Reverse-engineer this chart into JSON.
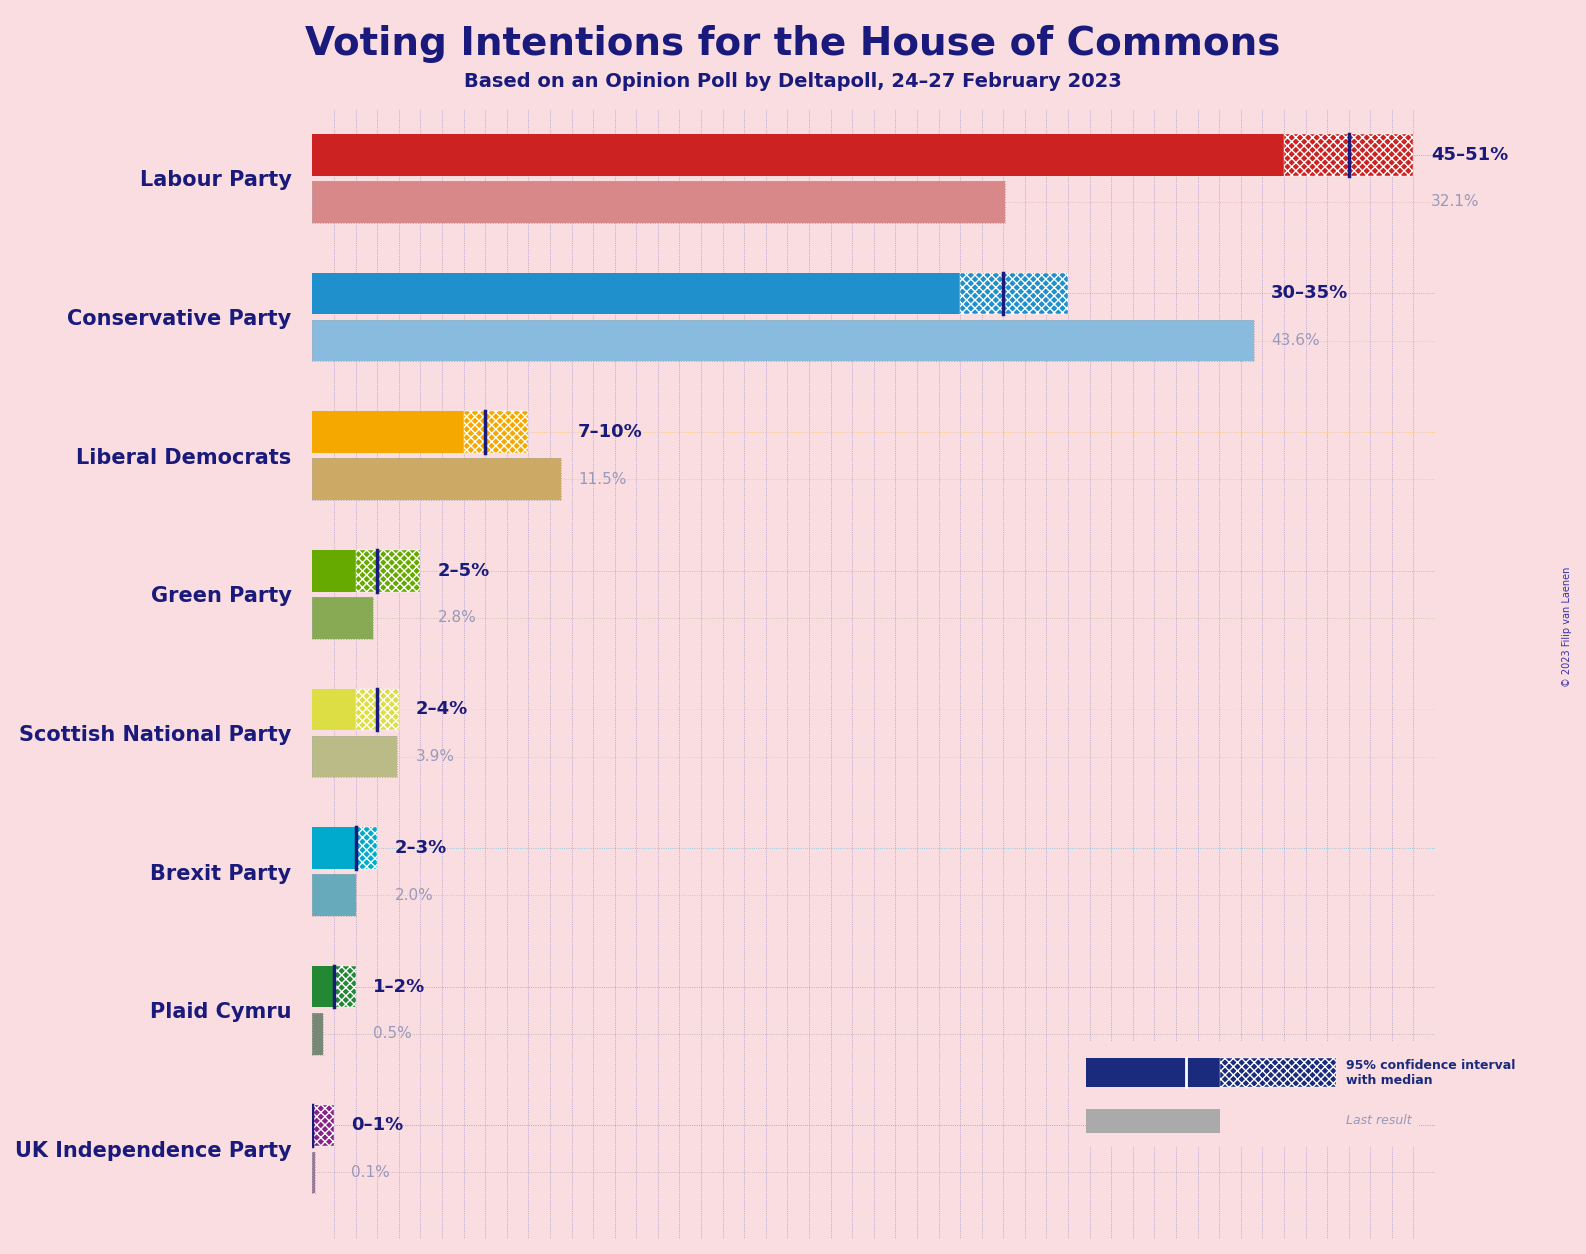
{
  "title": "Voting Intentions for the House of Commons",
  "subtitle": "Based on an Opinion Poll by Deltapoll, 24–27 February 2023",
  "copyright": "© 2023 Filip van Laenen",
  "background_color": "#f9dde0",
  "title_color": "#1a1a7c",
  "parties": [
    {
      "name": "Labour Party",
      "ci_low": 45,
      "ci_high": 51,
      "median": 48,
      "last_result": 32.1,
      "bar_color": "#cc2222",
      "last_color": "#d88888",
      "label": "45–51%",
      "last_label": "32.1%"
    },
    {
      "name": "Conservative Party",
      "ci_low": 30,
      "ci_high": 35,
      "median": 32,
      "last_result": 43.6,
      "bar_color": "#2090cc",
      "last_color": "#88bbdd",
      "label": "30–35%",
      "last_label": "43.6%"
    },
    {
      "name": "Liberal Democrats",
      "ci_low": 7,
      "ci_high": 10,
      "median": 8,
      "last_result": 11.5,
      "bar_color": "#f5a800",
      "last_color": "#ccaa66",
      "label": "7–10%",
      "last_label": "11.5%"
    },
    {
      "name": "Green Party",
      "ci_low": 2,
      "ci_high": 5,
      "median": 3,
      "last_result": 2.8,
      "bar_color": "#66aa00",
      "last_color": "#88aa55",
      "label": "2–5%",
      "last_label": "2.8%"
    },
    {
      "name": "Scottish National Party",
      "ci_low": 2,
      "ci_high": 4,
      "median": 3,
      "last_result": 3.9,
      "bar_color": "#dddd44",
      "last_color": "#bbbb88",
      "label": "2–4%",
      "last_label": "3.9%"
    },
    {
      "name": "Brexit Party",
      "ci_low": 2,
      "ci_high": 3,
      "median": 2,
      "last_result": 2.0,
      "bar_color": "#00aacc",
      "last_color": "#66aabb",
      "label": "2–3%",
      "last_label": "2.0%"
    },
    {
      "name": "Plaid Cymru",
      "ci_low": 1,
      "ci_high": 2,
      "median": 1,
      "last_result": 0.5,
      "bar_color": "#228833",
      "last_color": "#778877",
      "label": "1–2%",
      "last_label": "0.5%"
    },
    {
      "name": "UK Independence Party",
      "ci_low": 0,
      "ci_high": 1,
      "median": 0,
      "last_result": 0.1,
      "bar_color": "#882288",
      "last_color": "#997799",
      "label": "0–1%",
      "last_label": "0.1%"
    }
  ],
  "x_max": 52,
  "label_color": "#1a1a7c",
  "last_label_color": "#9999bb"
}
